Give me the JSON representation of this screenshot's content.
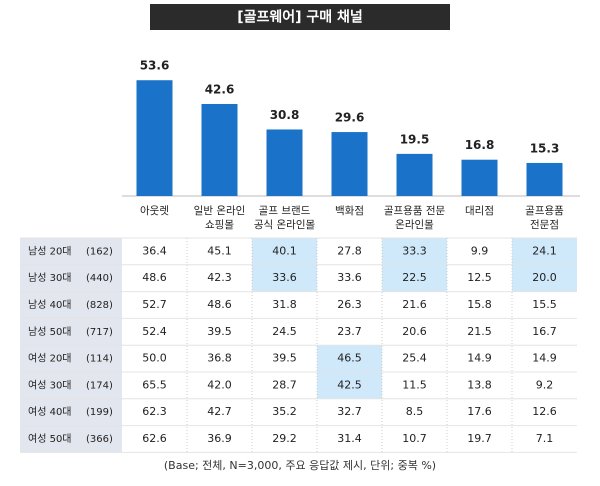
{
  "chart_data": {
    "type": "bar",
    "title": "[골프웨어] 구매 채널",
    "categories": [
      [
        "아웃렛"
      ],
      [
        "일반 온라인",
        "쇼핑몰"
      ],
      [
        "골프 브랜드",
        "공식 온라인몰"
      ],
      [
        "백화점"
      ],
      [
        "골프용품 전문",
        "온라인몰"
      ],
      [
        "대리점"
      ],
      [
        "골프용품",
        "전문점"
      ]
    ],
    "values": [
      53.6,
      42.6,
      30.8,
      29.6,
      19.5,
      16.8,
      15.3
    ],
    "color": "#1a73c9",
    "highlight_color": "#cfe8fa",
    "table": [
      {
        "label": "남성 20대",
        "n": "(162)",
        "values": [
          "36.4",
          "45.1",
          "40.1",
          "27.8",
          "33.3",
          "9.9",
          "24.1"
        ],
        "highlight": [
          2,
          4,
          6
        ]
      },
      {
        "label": "남성 30대",
        "n": "(440)",
        "values": [
          "48.6",
          "42.3",
          "33.6",
          "33.6",
          "22.5",
          "12.5",
          "20.0"
        ],
        "highlight": [
          2,
          4,
          6
        ]
      },
      {
        "label": "남성 40대",
        "n": "(828)",
        "values": [
          "52.7",
          "48.6",
          "31.8",
          "26.3",
          "21.6",
          "15.8",
          "15.5"
        ],
        "highlight": []
      },
      {
        "label": "남성 50대",
        "n": "(717)",
        "values": [
          "52.4",
          "39.5",
          "24.5",
          "23.7",
          "20.6",
          "21.5",
          "16.7"
        ],
        "highlight": []
      },
      {
        "label": "여성 20대",
        "n": "(114)",
        "values": [
          "50.0",
          "36.8",
          "39.5",
          "46.5",
          "25.4",
          "14.9",
          "14.9"
        ],
        "highlight": [
          3
        ]
      },
      {
        "label": "여성 30대",
        "n": "(174)",
        "values": [
          "65.5",
          "42.0",
          "28.7",
          "42.5",
          "11.5",
          "13.8",
          "9.2"
        ],
        "highlight": [
          3
        ]
      },
      {
        "label": "여성 40대",
        "n": "(199)",
        "values": [
          "62.3",
          "42.7",
          "35.2",
          "32.7",
          "8.5",
          "17.6",
          "12.6"
        ],
        "highlight": []
      },
      {
        "label": "여성 50대",
        "n": "(366)",
        "values": [
          "62.6",
          "36.9",
          "29.2",
          "31.4",
          "10.7",
          "19.7",
          "7.1"
        ],
        "highlight": []
      }
    ],
    "footnote": "(Base; 전체, N=3,000, 주요 응답값 제시, 단위; 중복 %)"
  }
}
